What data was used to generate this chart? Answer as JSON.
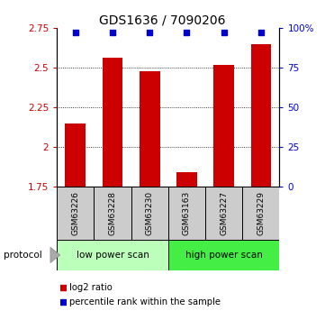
{
  "title": "GDS1636 / 7090206",
  "samples": [
    "GSM63226",
    "GSM63228",
    "GSM63230",
    "GSM63163",
    "GSM63227",
    "GSM63229"
  ],
  "log2_values": [
    2.15,
    2.56,
    2.48,
    1.84,
    2.52,
    2.65
  ],
  "percentile_values": [
    97,
    97,
    97,
    97,
    97,
    97
  ],
  "ylim_left": [
    1.75,
    2.75
  ],
  "ylim_right": [
    0,
    100
  ],
  "yticks_left": [
    1.75,
    2.0,
    2.25,
    2.5,
    2.75
  ],
  "ytick_labels_left": [
    "1.75",
    "2",
    "2.25",
    "2.5",
    "2.75"
  ],
  "yticks_right": [
    0,
    25,
    50,
    75,
    100
  ],
  "ytick_labels_right": [
    "0",
    "25",
    "50",
    "75",
    "100%"
  ],
  "gridlines_at": [
    2.0,
    2.25,
    2.5
  ],
  "bar_color": "#cc0000",
  "dot_color": "#0000cc",
  "bar_width": 0.55,
  "protocol_groups": [
    {
      "label": "low power scan",
      "indices": [
        0,
        1,
        2
      ],
      "color": "#bbffbb"
    },
    {
      "label": "high power scan",
      "indices": [
        3,
        4,
        5
      ],
      "color": "#44ee44"
    }
  ],
  "protocol_label": "protocol",
  "sample_box_color": "#cccccc",
  "legend_items": [
    {
      "label": "log2 ratio",
      "color": "#cc0000",
      "marker": "s"
    },
    {
      "label": "percentile rank within the sample",
      "color": "#0000cc",
      "marker": "s"
    }
  ],
  "background_color": "#ffffff"
}
